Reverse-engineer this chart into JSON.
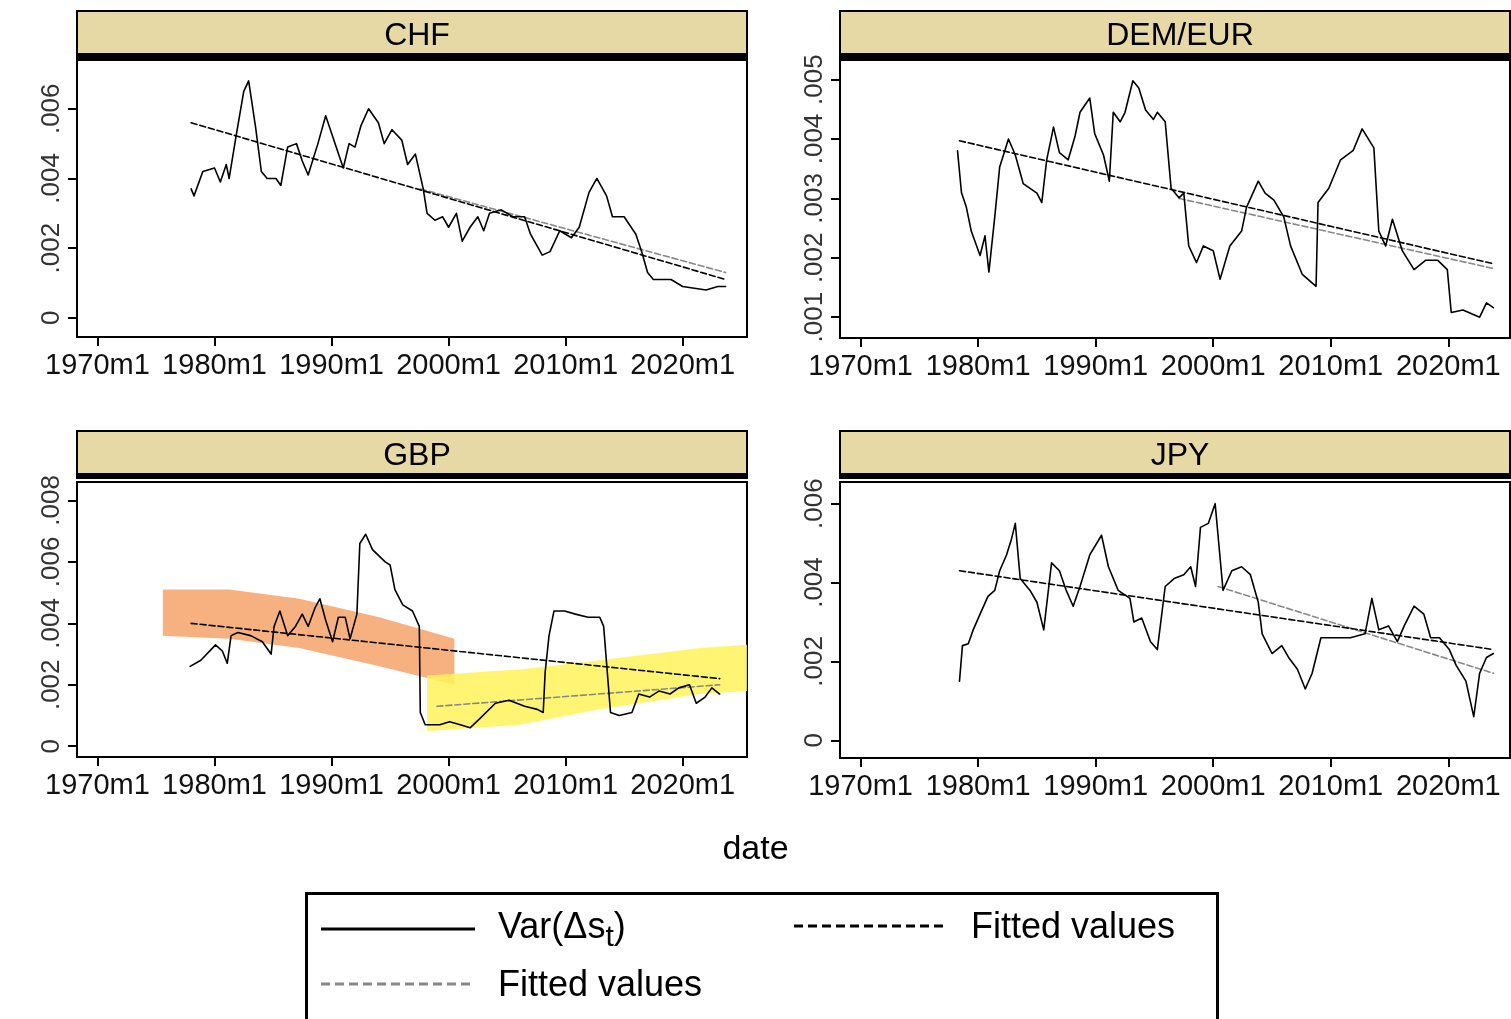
{
  "chart_data": [
    {
      "type": "line",
      "title": "CHF",
      "xlim": [
        "1968-04",
        "2025-07"
      ],
      "xticks": [
        {
          "value": "1970-01",
          "label": "1970m1"
        },
        {
          "value": "1980-01",
          "label": "1980m1"
        },
        {
          "value": "1990-01",
          "label": "1990m1"
        },
        {
          "value": "2000-01",
          "label": "2000m1"
        },
        {
          "value": "2010-01",
          "label": "2010m1"
        },
        {
          "value": "2020-01",
          "label": "2020m1"
        }
      ],
      "ylim": [
        -0.00055,
        0.0074
      ],
      "yticks": [
        {
          "value": 0,
          "label": "0"
        },
        {
          "value": 0.002,
          "label": ".002"
        },
        {
          "value": 0.004,
          "label": ".004"
        },
        {
          "value": 0.006,
          "label": ".006"
        }
      ],
      "legend": "bottom",
      "marker": "none",
      "series": [
        {
          "name": "Var(Δs$_{t}$)",
          "color": "#000000",
          "line_style": "solid",
          "x": [
            "1978-01",
            "1978-04",
            "1979-01",
            "1980-01",
            "1980-07",
            "1981-01",
            "1981-04",
            "1981-11",
            "1982-07",
            "1982-12",
            "1983-07",
            "1984-01",
            "1984-07",
            "1985-04",
            "1985-09",
            "1986-04",
            "1987-01",
            "1987-07",
            "1988-01",
            "1988-11",
            "1989-07",
            "1990-07",
            "1991-01",
            "1991-07",
            "1992-01",
            "1992-07",
            "1993-03",
            "1994-01",
            "1994-07",
            "1995-03",
            "1996-01",
            "1996-07",
            "1997-03",
            "1997-11",
            "1998-03",
            "1998-11",
            "1999-07",
            "2000-01",
            "2000-09",
            "2001-03",
            "2001-11",
            "2002-07",
            "2003-01",
            "2003-07",
            "2004-07",
            "2005-07",
            "2006-07",
            "2007-01",
            "2008-01",
            "2008-09",
            "2009-07",
            "2010-07",
            "2011-03",
            "2012-01",
            "2012-09",
            "2013-07",
            "2014-01",
            "2015-01",
            "2016-01",
            "2016-07",
            "2017-01",
            "2017-07",
            "2019-01",
            "2020-01",
            "2022-01",
            "2023-01",
            "2023-09"
          ],
          "values": [
            0.0037,
            0.0035,
            0.0042,
            0.0043,
            0.0039,
            0.0044,
            0.004,
            0.0052,
            0.0065,
            0.0068,
            0.0055,
            0.0042,
            0.004,
            0.004,
            0.0038,
            0.0049,
            0.005,
            0.0045,
            0.0041,
            0.005,
            0.0058,
            0.0048,
            0.0043,
            0.005,
            0.0049,
            0.0055,
            0.006,
            0.0056,
            0.005,
            0.0054,
            0.0051,
            0.0044,
            0.0047,
            0.0037,
            0.003,
            0.0028,
            0.0029,
            0.0026,
            0.003,
            0.0022,
            0.0026,
            0.0029,
            0.0025,
            0.003,
            0.0031,
            0.0029,
            0.0029,
            0.0024,
            0.0018,
            0.0019,
            0.0025,
            0.0023,
            0.0026,
            0.0036,
            0.004,
            0.0035,
            0.0029,
            0.0029,
            0.0024,
            0.0019,
            0.0013,
            0.0011,
            0.0011,
            0.0009,
            0.0008,
            0.0009,
            0.0009
          ]
        },
        {
          "name": "Fitted values",
          "color": "#000000",
          "line_style": "dashed",
          "x": [
            "1978-01",
            "2023-09"
          ],
          "values": [
            0.0056,
            0.0011
          ]
        },
        {
          "name": "Fitted values",
          "color": "#888888",
          "line_style": "dashed",
          "x": [
            "1997-08",
            "2023-09"
          ],
          "values": [
            0.0037,
            0.0013
          ]
        }
      ]
    },
    {
      "type": "line",
      "title": "DEM/EUR",
      "xlim": [
        "1968-04",
        "2025-04"
      ],
      "xticks": [
        {
          "value": "1970-01",
          "label": "1970m1"
        },
        {
          "value": "1980-01",
          "label": "1980m1"
        },
        {
          "value": "1990-01",
          "label": "1990m1"
        },
        {
          "value": "2000-01",
          "label": "2000m1"
        },
        {
          "value": "2010-01",
          "label": "2010m1"
        },
        {
          "value": "2020-01",
          "label": "2020m1"
        }
      ],
      "ylim": [
        0.00065,
        0.00533
      ],
      "yticks": [
        {
          "value": 0.001,
          "label": ".001"
        },
        {
          "value": 0.002,
          "label": ".002"
        },
        {
          "value": 0.003,
          "label": ".003"
        },
        {
          "value": 0.004,
          "label": ".004"
        },
        {
          "value": 0.005,
          "label": ".005"
        }
      ],
      "legend": "bottom",
      "marker": "none",
      "series": [
        {
          "color": "#000000",
          "line_style": "solid",
          "x": [
            "1978-04",
            "1978-08",
            "1979-01",
            "1979-06",
            "1980-03",
            "1980-08",
            "1980-12",
            "1981-06",
            "1981-11",
            "1982-08",
            "1983-03",
            "1983-11",
            "1984-06",
            "1985-01",
            "1985-06",
            "1985-11",
            "1986-06",
            "1986-12",
            "1987-09",
            "1988-04",
            "1988-09",
            "1989-07",
            "1989-12",
            "1990-09",
            "1991-03",
            "1991-07",
            "1992-02",
            "1992-07",
            "1993-03",
            "1993-09",
            "1994-04",
            "1994-12",
            "1995-04",
            "1995-12",
            "1996-06",
            "1997-02",
            "1997-07",
            "1997-12",
            "1998-08",
            "1999-03",
            "2000-01",
            "2000-08",
            "2001-06",
            "2002-06",
            "2002-11",
            "2003-11",
            "2004-06",
            "2005-03",
            "2006-01",
            "2006-08",
            "2007-08",
            "2008-10",
            "2008-12",
            "2009-11",
            "2010-11",
            "2011-12",
            "2012-09",
            "2013-09",
            "2014-02",
            "2014-09",
            "2015-04",
            "2016-02",
            "2017-02",
            "2018-02",
            "2019-02",
            "2019-12",
            "2020-04",
            "2021-04",
            "2022-09",
            "2023-04",
            "2023-11"
          ],
          "values": [
            0.0038,
            0.0031,
            0.00285,
            0.00245,
            0.00204,
            0.00237,
            0.00176,
            0.00269,
            0.00353,
            0.004,
            0.00373,
            0.00325,
            0.00317,
            0.00309,
            0.00293,
            0.00365,
            0.0042,
            0.00377,
            0.00365,
            0.00405,
            0.00445,
            0.00469,
            0.00409,
            0.00373,
            0.00329,
            0.00445,
            0.00429,
            0.00445,
            0.00498,
            0.00486,
            0.00449,
            0.00433,
            0.00445,
            0.00429,
            0.00317,
            0.00301,
            0.00309,
            0.0022,
            0.00192,
            0.0022,
            0.00212,
            0.00164,
            0.0022,
            0.00245,
            0.00285,
            0.00329,
            0.00309,
            0.00297,
            0.00269,
            0.0022,
            0.00172,
            0.00152,
            0.00293,
            0.00317,
            0.00365,
            0.00381,
            0.00417,
            0.00385,
            0.00245,
            0.0022,
            0.00265,
            0.00212,
            0.0018,
            0.00196,
            0.00196,
            0.0018,
            0.00108,
            0.00112,
            0.001,
            0.00124,
            0.00116
          ]
        },
        {
          "color": "#000000",
          "line_style": "dashed",
          "x": [
            "1978-06",
            "2023-11"
          ],
          "values": [
            0.00397,
            0.0019
          ]
        },
        {
          "color": "#888888",
          "line_style": "dashed",
          "x": [
            "1997-02",
            "2023-11"
          ],
          "values": [
            0.003,
            0.00182
          ]
        }
      ]
    },
    {
      "type": "line",
      "title": "GBP",
      "xlabel": "date",
      "xlim": [
        "1968-04",
        "2025-07"
      ],
      "xticks": [
        {
          "value": "1970-01",
          "label": "1970m1"
        },
        {
          "value": "1980-01",
          "label": "1980m1"
        },
        {
          "value": "1990-01",
          "label": "1990m1"
        },
        {
          "value": "2000-01",
          "label": "2000m1"
        },
        {
          "value": "2010-01",
          "label": "2010m1"
        },
        {
          "value": "2020-01",
          "label": "2020m1"
        }
      ],
      "ylim": [
        -0.00035,
        0.0086
      ],
      "yticks": [
        {
          "value": 0,
          "label": "0"
        },
        {
          "value": 0.002,
          "label": ".002"
        },
        {
          "value": 0.004,
          "label": ".004"
        },
        {
          "value": 0.006,
          "label": ".006"
        },
        {
          "value": 0.008,
          "label": ".008"
        }
      ],
      "legend": "bottom",
      "marker": "none",
      "series": [
        {
          "color": "#000000",
          "line_style": "solid",
          "x": [
            "1977-12",
            "1978-11",
            "1980-02",
            "1980-09",
            "1981-02",
            "1981-06",
            "1982-01",
            "1983-02",
            "1984-02",
            "1984-11",
            "1985-02",
            "1985-08",
            "1986-04",
            "1986-12",
            "1987-07",
            "1988-01",
            "1988-08",
            "1989-01",
            "1989-07",
            "1990-02",
            "1990-08",
            "1991-03",
            "1991-08",
            "1992-03",
            "1992-06",
            "1992-12",
            "1993-07",
            "1994-08",
            "1995-01",
            "1995-06",
            "1996-02",
            "1996-12",
            "1997-07",
            "1997-08",
            "1998-01",
            "1999-04",
            "2000-02",
            "2001-01",
            "2001-11",
            "2002-09",
            "2004-01",
            "2005-03",
            "2006-07",
            "2007-08",
            "2008-02",
            "2008-04",
            "2008-08",
            "2009-01",
            "2009-12",
            "2010-11",
            "2011-12",
            "2012-12",
            "2013-04",
            "2013-11",
            "2014-08",
            "2015-09",
            "2016-04",
            "2017-03",
            "2018-01",
            "2018-12",
            "2019-09",
            "2020-08",
            "2021-03",
            "2021-12",
            "2022-07",
            "2023-03"
          ],
          "values": [
            0.0026,
            0.0028,
            0.0033,
            0.0031,
            0.0027,
            0.0036,
            0.0037,
            0.0036,
            0.0034,
            0.003,
            0.0039,
            0.0044,
            0.0036,
            0.0039,
            0.0043,
            0.0039,
            0.0045,
            0.0048,
            0.0041,
            0.0034,
            0.0042,
            0.0042,
            0.0035,
            0.0043,
            0.0066,
            0.0069,
            0.0064,
            0.006,
            0.0059,
            0.0051,
            0.0046,
            0.0044,
            0.0039,
            0.0011,
            0.0007,
            0.0007,
            0.0008,
            0.0007,
            0.0006,
            0.0009,
            0.0014,
            0.0015,
            0.0013,
            0.0012,
            0.0011,
            0.0024,
            0.0036,
            0.0044,
            0.0044,
            0.0043,
            0.0042,
            0.0042,
            0.0039,
            0.0011,
            0.001,
            0.0011,
            0.0017,
            0.0016,
            0.0018,
            0.0017,
            0.0019,
            0.002,
            0.0014,
            0.0016,
            0.0019,
            0.0017
          ]
        },
        {
          "color": "#000000",
          "line_style": "dashed",
          "x": [
            "1978-01",
            "2023-03"
          ],
          "values": [
            0.004,
            0.0022
          ]
        },
        {
          "color": "#888888",
          "line_style": "dashed",
          "x": [
            "1999-01",
            "2023-03"
          ],
          "values": [
            0.0013,
            0.002
          ]
        },
        {
          "color": "#f6a36a",
          "x": [
            "1975-08",
            "1981-04",
            "1987-04",
            "1994-02",
            "2000-07"
          ],
          "values": [
            null,
            null,
            null,
            null,
            null
          ],
          "lower": [
            0.0036,
            0.0035,
            0.0032,
            0.0026,
            0.002
          ],
          "upper": [
            0.0051,
            0.0051,
            0.0048,
            0.0042,
            0.0035
          ]
        },
        {
          "color": "#fff35a",
          "x": [
            "1998-03",
            "2006-02",
            "2012-12",
            "2021-07",
            "2025-07"
          ],
          "values": [
            null,
            null,
            null,
            null,
            null
          ],
          "lower": [
            0.0005,
            0.0007,
            0.0012,
            0.0017,
            0.0018
          ],
          "upper": [
            0.0023,
            0.0025,
            0.0028,
            0.0032,
            0.0033
          ]
        }
      ]
    },
    {
      "type": "line",
      "title": "JPY",
      "xlim": [
        "1968-04",
        "2025-04"
      ],
      "xticks": [
        {
          "value": "1970-01",
          "label": "1970m1"
        },
        {
          "value": "1980-01",
          "label": "1980m1"
        },
        {
          "value": "1990-01",
          "label": "1990m1"
        },
        {
          "value": "2000-01",
          "label": "2000m1"
        },
        {
          "value": "2010-01",
          "label": "2010m1"
        },
        {
          "value": "2020-01",
          "label": "2020m1"
        }
      ],
      "ylim": [
        -0.00045,
        0.00655
      ],
      "yticks": [
        {
          "value": 0,
          "label": "0"
        },
        {
          "value": 0.002,
          "label": ".002"
        },
        {
          "value": 0.004,
          "label": ".004"
        },
        {
          "value": 0.006,
          "label": ".006"
        }
      ],
      "legend": "bottom",
      "marker": "none",
      "series": [
        {
          "color": "#000000",
          "line_style": "solid",
          "x": [
            "1978-06",
            "1978-09",
            "1979-03",
            "1979-08",
            "1980-03",
            "1980-11",
            "1981-06",
            "1981-11",
            "1982-06",
            "1982-11",
            "1983-03",
            "1983-08",
            "1984-06",
            "1985-01",
            "1985-08",
            "1986-04",
            "1986-12",
            "1987-07",
            "1988-02",
            "1988-09",
            "1989-07",
            "1990-07",
            "1991-02",
            "1991-12",
            "1992-12",
            "1993-04",
            "1993-12",
            "1994-09",
            "1995-04",
            "1995-12",
            "1996-09",
            "1997-07",
            "1998-02",
            "1998-07",
            "1998-12",
            "1999-08",
            "2000-03",
            "2000-11",
            "2001-08",
            "2002-06",
            "2003-03",
            "2003-11",
            "2004-03",
            "2005-01",
            "2005-11",
            "2006-06",
            "2007-03",
            "2007-11",
            "2008-06",
            "2009-03",
            "2010-06",
            "2011-09",
            "2012-12",
            "2013-07",
            "2014-02",
            "2014-12",
            "2015-09",
            "2016-04",
            "2017-02",
            "2017-12",
            "2018-07",
            "2019-04",
            "2020-02",
            "2020-09",
            "2021-07",
            "2022-03",
            "2022-09",
            "2023-04",
            "2023-11"
          ],
          "values": [
            0.0015,
            0.0024,
            0.00245,
            0.0028,
            0.0032,
            0.00365,
            0.0038,
            0.0043,
            0.0047,
            0.0051,
            0.0055,
            0.0041,
            0.0038,
            0.0035,
            0.0028,
            0.0045,
            0.0043,
            0.0038,
            0.0034,
            0.0039,
            0.0047,
            0.0052,
            0.0044,
            0.0038,
            0.0036,
            0.003,
            0.0031,
            0.0025,
            0.0023,
            0.0039,
            0.0041,
            0.0042,
            0.0044,
            0.0039,
            0.0054,
            0.0055,
            0.006,
            0.0038,
            0.0043,
            0.0044,
            0.0042,
            0.0035,
            0.0027,
            0.0022,
            0.0024,
            0.0021,
            0.0018,
            0.0013,
            0.0017,
            0.0026,
            0.0026,
            0.0026,
            0.0027,
            0.0036,
            0.0028,
            0.0029,
            0.0025,
            0.0029,
            0.0034,
            0.0032,
            0.0026,
            0.0026,
            0.0023,
            0.0019,
            0.0015,
            0.0006,
            0.0017,
            0.0021,
            0.0022
          ]
        },
        {
          "color": "#000000",
          "line_style": "dashed",
          "x": [
            "1978-06",
            "2023-11"
          ],
          "values": [
            0.0043,
            0.0023
          ]
        },
        {
          "color": "#888888",
          "line_style": "dashed",
          "x": [
            "2000-06",
            "2023-11"
          ],
          "values": [
            0.0039,
            0.0017
          ]
        }
      ]
    }
  ]
}
